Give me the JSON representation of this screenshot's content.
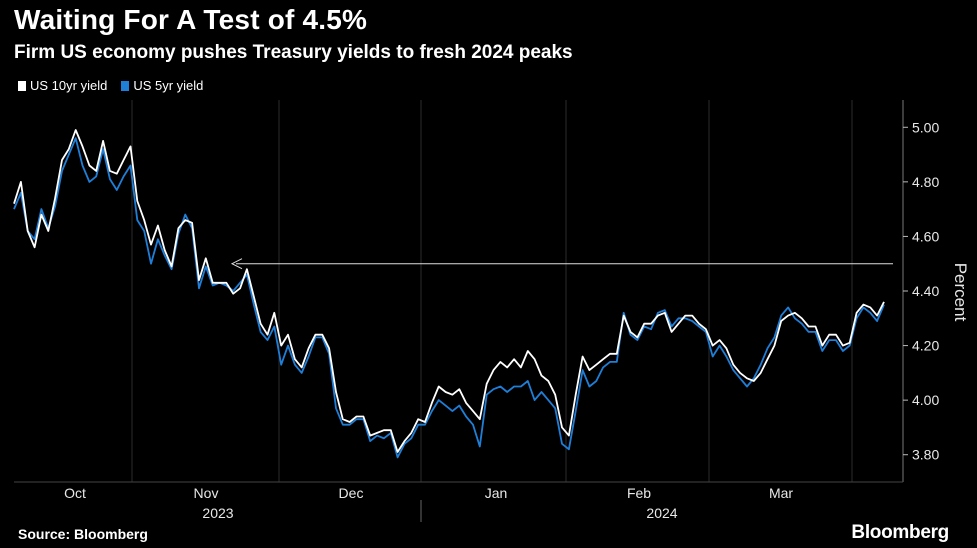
{
  "title": "Waiting For A Test of 4.5%",
  "subtitle": "Firm US economy pushes Treasury yields to fresh 2024 peaks",
  "source": "Source: Bloomberg",
  "brand": "Bloomberg",
  "colors": {
    "background": "#000000",
    "series_10yr": "#ffffff",
    "series_5yr": "#1f7fd8",
    "grid": "#2a2a2a"
  },
  "chart_data": {
    "type": "line",
    "title": "Waiting For A Test of 4.5%",
    "ylabel": "Percent",
    "ylim": [
      3.7,
      5.1
    ],
    "yticks": [
      "5.00",
      "4.80",
      "4.60",
      "4.40",
      "4.20",
      "4.00",
      "3.80"
    ],
    "xticks": [
      "Oct",
      "Nov",
      "Dec",
      "Jan",
      "Feb",
      "Mar"
    ],
    "year_labels": [
      "2023",
      "2024"
    ],
    "annotation": {
      "type": "arrow",
      "y": 4.5,
      "description": "horizontal arrow at 4.50"
    },
    "legend": [
      "US 10yr yield",
      "US 5yr yield"
    ],
    "series": [
      {
        "name": "US 10yr yield",
        "values": [
          4.72,
          4.8,
          4.62,
          4.56,
          4.68,
          4.62,
          4.74,
          4.88,
          4.92,
          4.99,
          4.93,
          4.86,
          4.84,
          4.95,
          4.84,
          4.83,
          4.88,
          4.93,
          4.73,
          4.66,
          4.57,
          4.64,
          4.55,
          4.49,
          4.63,
          4.66,
          4.65,
          4.44,
          4.52,
          4.43,
          4.43,
          4.43,
          4.39,
          4.41,
          4.48,
          4.38,
          4.28,
          4.24,
          4.32,
          4.2,
          4.24,
          4.15,
          4.12,
          4.19,
          4.24,
          4.24,
          4.19,
          4.03,
          3.93,
          3.92,
          3.94,
          3.94,
          3.87,
          3.88,
          3.89,
          3.89,
          3.81,
          3.85,
          3.88,
          3.93,
          3.92,
          3.99,
          4.05,
          4.03,
          4.02,
          4.04,
          3.99,
          3.96,
          3.93,
          4.06,
          4.11,
          4.14,
          4.12,
          4.15,
          4.12,
          4.18,
          4.15,
          4.09,
          4.07,
          4.02,
          3.9,
          3.87,
          4.02,
          4.16,
          4.11,
          4.13,
          4.15,
          4.17,
          4.17,
          4.31,
          4.25,
          4.23,
          4.28,
          4.28,
          4.31,
          4.32,
          4.25,
          4.28,
          4.31,
          4.31,
          4.28,
          4.26,
          4.2,
          4.22,
          4.19,
          4.13,
          4.1,
          4.08,
          4.07,
          4.1,
          4.15,
          4.2,
          4.29,
          4.31,
          4.32,
          4.3,
          4.27,
          4.27,
          4.2,
          4.24,
          4.24,
          4.2,
          4.21,
          4.32,
          4.35,
          4.34,
          4.31,
          4.36
        ]
      },
      {
        "name": "US 5yr yield",
        "values": [
          4.7,
          4.76,
          4.62,
          4.59,
          4.7,
          4.63,
          4.71,
          4.84,
          4.9,
          4.96,
          4.86,
          4.8,
          4.82,
          4.92,
          4.81,
          4.77,
          4.82,
          4.86,
          4.66,
          4.62,
          4.5,
          4.59,
          4.53,
          4.48,
          4.61,
          4.68,
          4.63,
          4.41,
          4.49,
          4.42,
          4.43,
          4.42,
          4.4,
          4.43,
          4.46,
          4.35,
          4.25,
          4.22,
          4.27,
          4.13,
          4.2,
          4.13,
          4.1,
          4.16,
          4.23,
          4.23,
          4.17,
          3.97,
          3.91,
          3.91,
          3.93,
          3.93,
          3.85,
          3.87,
          3.86,
          3.88,
          3.79,
          3.84,
          3.86,
          3.91,
          3.91,
          3.96,
          4.0,
          3.98,
          3.96,
          3.98,
          3.94,
          3.91,
          3.83,
          4.02,
          4.04,
          4.05,
          4.03,
          4.05,
          4.05,
          4.07,
          4.0,
          4.03,
          4.0,
          3.97,
          3.84,
          3.82,
          3.96,
          4.11,
          4.05,
          4.07,
          4.12,
          4.14,
          4.14,
          4.32,
          4.24,
          4.22,
          4.27,
          4.26,
          4.32,
          4.33,
          4.27,
          4.3,
          4.3,
          4.29,
          4.27,
          4.25,
          4.16,
          4.2,
          4.16,
          4.11,
          4.08,
          4.05,
          4.08,
          4.13,
          4.19,
          4.23,
          4.31,
          4.34,
          4.3,
          4.28,
          4.25,
          4.25,
          4.18,
          4.22,
          4.22,
          4.18,
          4.2,
          4.3,
          4.34,
          4.32,
          4.29,
          4.35
        ]
      }
    ]
  }
}
